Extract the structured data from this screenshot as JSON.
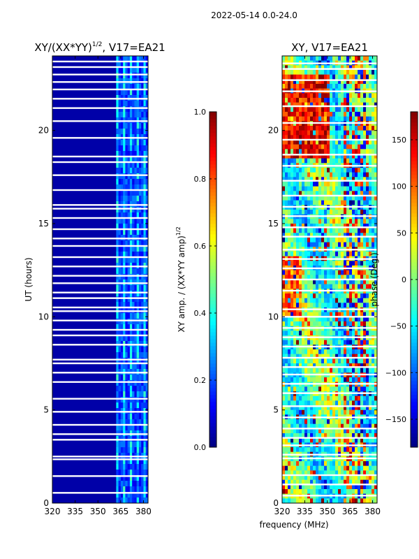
{
  "suptitle": "2022-05-14 0.0-24.0",
  "chart_data": [
    {
      "type": "heatmap",
      "title_base": "XY/(XX*YY)",
      "title_sup": "1/2",
      "title_tail": ", V17=EA21",
      "xlabel": "",
      "ylabel": "UT (hours)",
      "xlim": [
        320,
        383
      ],
      "ylim": [
        0,
        24
      ],
      "x_ticks": [
        320,
        335,
        350,
        365,
        380
      ],
      "y_ticks": [
        0,
        5,
        10,
        15,
        20
      ],
      "signal_band_MHz": [
        362,
        383
      ],
      "background_value": 0.02,
      "peak_value": 0.45,
      "gap_hours": [
        0.55,
        1.45,
        2.35,
        2.5,
        3.4,
        3.7,
        4.2,
        4.9,
        5.6,
        6.5,
        7.0,
        7.5,
        7.7,
        8.5,
        9.0,
        9.3,
        9.8,
        10.3,
        10.5,
        11.0,
        11.3,
        11.8,
        12.2,
        12.7,
        13.2,
        13.8,
        14.2,
        14.7,
        15.3,
        15.8,
        16.0,
        16.8,
        17.6,
        18.3,
        18.6,
        19.6,
        20.5,
        21.2,
        21.7,
        22.2,
        22.6,
        23.0,
        23.4,
        23.7
      ]
    },
    {
      "type": "heatmap",
      "title": "XY, V17=EA21",
      "xlabel": "frequency (MHz)",
      "ylabel": "",
      "xlim": [
        320,
        383
      ],
      "ylim": [
        0,
        24
      ],
      "x_ticks": [
        320,
        335,
        350,
        365,
        380
      ],
      "y_ticks": [
        0,
        5,
        10,
        15,
        20
      ],
      "value_range_deg": [
        -180,
        180
      ],
      "gap_hours": [
        0.4,
        1.0,
        1.5,
        2.4,
        2.6,
        3.1,
        3.5,
        4.0,
        4.6,
        5.2,
        5.9,
        6.4,
        6.9,
        7.3,
        7.8,
        8.4,
        8.9,
        9.4,
        10.0,
        10.4,
        11.4,
        12.0,
        12.6,
        13.1,
        13.6,
        14.3,
        14.8,
        15.4,
        15.9,
        16.5,
        17.3,
        18.1,
        18.7,
        19.5,
        20.4,
        21.3,
        22.1,
        22.7,
        23.3,
        23.6
      ]
    }
  ],
  "colorbars": [
    {
      "label_base": "XY amp. / (XX*YY amp)",
      "label_sup": "1/2",
      "min": 0.0,
      "max": 1.0,
      "ticks": [
        "0.0",
        "0.2",
        "0.4",
        "0.6",
        "0.8",
        "1.0"
      ]
    },
    {
      "label": "phase (Deg.)",
      "min": -180,
      "max": 180,
      "ticks": [
        "-150",
        "-100",
        "-50",
        "0",
        "50",
        "100",
        "150"
      ]
    }
  ]
}
